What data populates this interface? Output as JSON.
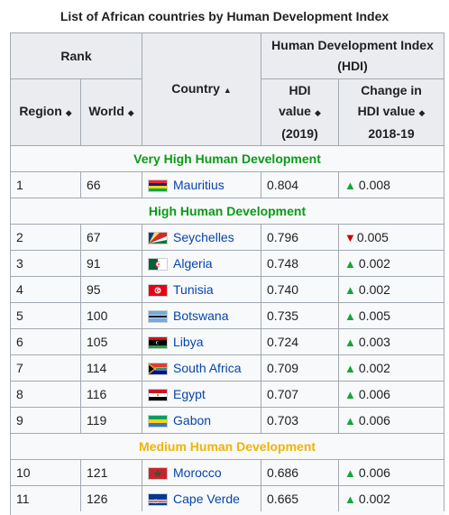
{
  "table": {
    "caption": "List of African countries by Human Development Index",
    "headers": {
      "rank": "Rank",
      "country": "Country",
      "hdi_group": "Human Development Index",
      "hdi_group_sub": "(HDI)",
      "region": "Region",
      "world": "World",
      "hdi_value_1": "HDI",
      "hdi_value_2": "value",
      "hdi_value_3": "(2019)",
      "change_1": "Change in",
      "change_2": "HDI value",
      "change_3": "2018-19"
    },
    "sections": [
      {
        "title": "Very High Human Development",
        "color": "#0b9a18",
        "rows": [
          {
            "region": "1",
            "world": "66",
            "country": "Mauritius",
            "flag": "mauritius",
            "hdi": "0.804",
            "trend": "up",
            "change": "0.008"
          }
        ]
      },
      {
        "title": "High Human Development",
        "color": "#0b9a18",
        "rows": [
          {
            "region": "2",
            "world": "67",
            "country": "Seychelles",
            "flag": "seychelles",
            "hdi": "0.796",
            "trend": "down",
            "change": "0.005"
          },
          {
            "region": "3",
            "world": "91",
            "country": "Algeria",
            "flag": "algeria",
            "hdi": "0.748",
            "trend": "up",
            "change": "0.002"
          },
          {
            "region": "4",
            "world": "95",
            "country": "Tunisia",
            "flag": "tunisia",
            "hdi": "0.740",
            "trend": "up",
            "change": "0.002"
          },
          {
            "region": "5",
            "world": "100",
            "country": "Botswana",
            "flag": "botswana",
            "hdi": "0.735",
            "trend": "up",
            "change": "0.005"
          },
          {
            "region": "6",
            "world": "105",
            "country": "Libya",
            "flag": "libya",
            "hdi": "0.724",
            "trend": "up",
            "change": "0.003"
          },
          {
            "region": "7",
            "world": "114",
            "country": "South Africa",
            "flag": "south-africa",
            "hdi": "0.709",
            "trend": "up",
            "change": "0.002"
          },
          {
            "region": "8",
            "world": "116",
            "country": "Egypt",
            "flag": "egypt",
            "hdi": "0.707",
            "trend": "up",
            "change": "0.006"
          },
          {
            "region": "9",
            "world": "119",
            "country": "Gabon",
            "flag": "gabon",
            "hdi": "0.703",
            "trend": "up",
            "change": "0.006"
          }
        ]
      },
      {
        "title": "Medium Human Development",
        "color": "#f0b400",
        "rows": [
          {
            "region": "10",
            "world": "121",
            "country": "Morocco",
            "flag": "morocco",
            "hdi": "0.686",
            "trend": "up",
            "change": "0.006"
          },
          {
            "region": "11",
            "world": "126",
            "country": "Cape Verde",
            "flag": "cape-verde",
            "hdi": "0.665",
            "trend": "up",
            "change": "0.002"
          }
        ]
      }
    ]
  },
  "icons": {
    "sort": "sort-icon",
    "up": "increase-triangle-icon",
    "down": "decrease-triangle-icon"
  },
  "colors": {
    "link": "#0645ad",
    "up": "#14a636",
    "down": "#d00000",
    "header_bg": "#eaecf0",
    "cell_bg": "#f8f9fa",
    "border": "#a2a9b1"
  }
}
